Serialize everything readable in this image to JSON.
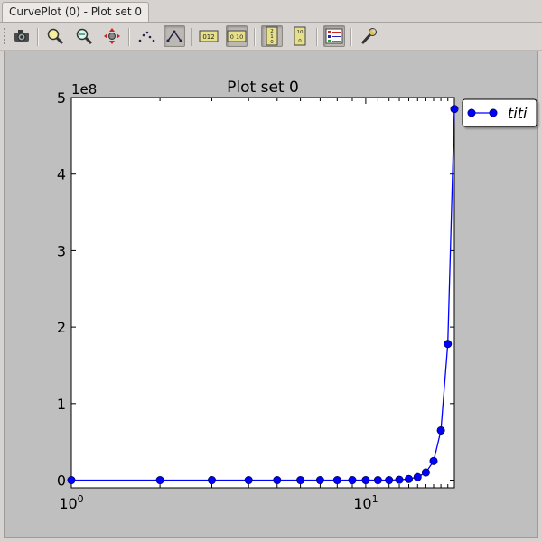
{
  "window": {
    "tab_title": "CurvePlot (0) - Plot set 0"
  },
  "toolbar": {
    "buttons": [
      {
        "name": "camera-icon",
        "label": "Save image",
        "active": false
      },
      {
        "name": "zoom-in-icon",
        "label": "Zoom",
        "active": false
      },
      {
        "name": "zoom-reset-icon",
        "label": "Fit",
        "active": false
      },
      {
        "name": "pan-icon",
        "label": "Pan",
        "active": false
      },
      {
        "name": "points-mode-icon",
        "label": "Points",
        "active": false
      },
      {
        "name": "lines-mode-icon",
        "label": "Lines",
        "active": true
      },
      {
        "name": "linear-x-icon",
        "label": "X linear",
        "active": false
      },
      {
        "name": "log-x-icon",
        "label": "X log",
        "active": true
      },
      {
        "name": "linear-y-icon",
        "label": "Y linear",
        "active": true
      },
      {
        "name": "log-y-icon",
        "label": "Y log",
        "active": false
      },
      {
        "name": "legend-icon",
        "label": "Legend",
        "active": true
      },
      {
        "name": "settings-wrench-icon",
        "label": "Settings",
        "active": false
      }
    ]
  },
  "chart_data": {
    "type": "line",
    "title": "Plot set 0",
    "xscale": "log",
    "xlim": [
      1,
      20
    ],
    "ylim": [
      -0.1,
      5.0
    ],
    "y_multiplier_label": "1e8",
    "x_tick_labels": [
      {
        "value": 1,
        "base": "10",
        "exp": "0"
      },
      {
        "value": 10,
        "base": "10",
        "exp": "1"
      }
    ],
    "y_ticks": [
      0,
      1,
      2,
      3,
      4,
      5
    ],
    "y_tick_labels": [
      "0",
      "1",
      "2",
      "3",
      "4",
      "5"
    ],
    "grid": false,
    "legend_position": "outside-top-right",
    "colors": {
      "series": "#0000ff",
      "plot_bg": "#ffffff",
      "outer_bg": "#bfbfbf"
    },
    "series": [
      {
        "name": "titi",
        "x": [
          1,
          2,
          3,
          4,
          5,
          6,
          7,
          8,
          9,
          10,
          11,
          12,
          13,
          14,
          15,
          16,
          17,
          18,
          19,
          20
        ],
        "y": [
          0.0,
          0.0,
          0.0,
          0.0,
          0.0,
          0.0,
          0.0,
          0.0,
          0.0,
          0.0,
          0.0,
          0.0,
          0.005,
          0.015,
          0.04,
          0.1,
          0.25,
          0.65,
          1.78,
          4.85
        ]
      }
    ]
  }
}
